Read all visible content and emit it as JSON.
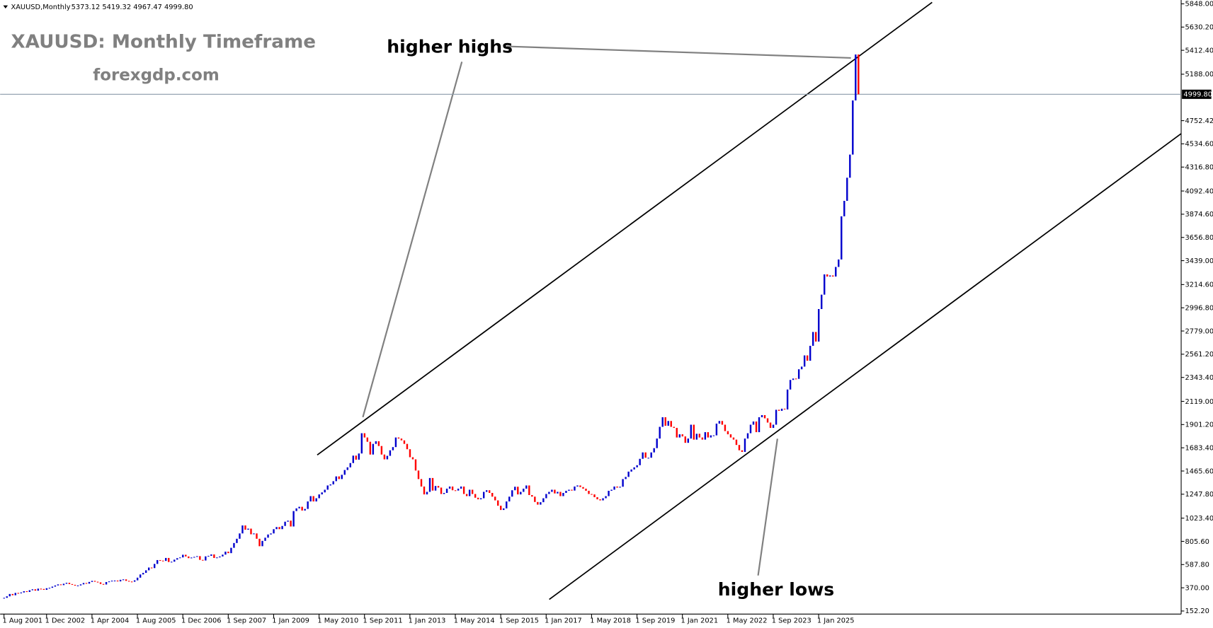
{
  "chart_data": {
    "type": "candlestick",
    "header": {
      "symbol": "XAUUSD,Monthly",
      "ohlc": "5373.12 5419.32 4967.47 4999.80"
    },
    "title": "XAUUSD: Monthly Timeframe",
    "subtitle": "forexgdp.com",
    "annotations": [
      "higher highs",
      "higher lows"
    ],
    "up_color": "#0000cd",
    "down_color": "#ff0000",
    "values": [
      276,
      290,
      312,
      300,
      322,
      318,
      326,
      338,
      331,
      347,
      356,
      343,
      362,
      359,
      351,
      366,
      370,
      381,
      392,
      402,
      395,
      408,
      417,
      405,
      398,
      390,
      392,
      402,
      415,
      409,
      425,
      435,
      427,
      421,
      406,
      401,
      424,
      430,
      437,
      438,
      430,
      445,
      449,
      435,
      429,
      427,
      440,
      465,
      495,
      510,
      534,
      560,
      555,
      594,
      630,
      625,
      622,
      650,
      612,
      615,
      634,
      648,
      655,
      680,
      664,
      648,
      654,
      660,
      667,
      632,
      626,
      665,
      670,
      683,
      650,
      655,
      664,
      681,
      709,
      695,
      745,
      790,
      830,
      880,
      955,
      915,
      925,
      872,
      880,
      830,
      760,
      810,
      840,
      870,
      880,
      920,
      940,
      920,
      950,
      990,
      1000,
      945,
      1090,
      1115,
      1130,
      1095,
      1110,
      1180,
      1230,
      1180,
      1210,
      1246,
      1265,
      1290,
      1330,
      1340,
      1370,
      1415,
      1390,
      1430,
      1475,
      1500,
      1540,
      1610,
      1572,
      1630,
      1820,
      1780,
      1740,
      1620,
      1720,
      1745,
      1700,
      1620,
      1575,
      1608,
      1660,
      1690,
      1780,
      1770,
      1753,
      1720,
      1670,
      1595,
      1575,
      1470,
      1390,
      1320,
      1246,
      1270,
      1400,
      1282,
      1325,
      1310,
      1250,
      1260,
      1300,
      1320,
      1285,
      1282,
      1300,
      1320,
      1250,
      1230,
      1290,
      1250,
      1215,
      1200,
      1210,
      1270,
      1285,
      1260,
      1225,
      1190,
      1140,
      1100,
      1115,
      1180,
      1225,
      1285,
      1318,
      1246,
      1270,
      1300,
      1330,
      1240,
      1225,
      1175,
      1150,
      1173,
      1210,
      1250,
      1270,
      1290,
      1255,
      1270,
      1230,
      1260,
      1280,
      1290,
      1282,
      1320,
      1330,
      1315,
      1300,
      1280,
      1250,
      1246,
      1220,
      1200,
      1190,
      1210,
      1230,
      1280,
      1290,
      1320,
      1310,
      1318,
      1390,
      1410,
      1460,
      1480,
      1500,
      1520,
      1580,
      1640,
      1590,
      1590,
      1640,
      1680,
      1770,
      1880,
      1970,
      1890,
      1935,
      1880,
      1870,
      1780,
      1810,
      1790,
      1730,
      1770,
      1900,
      1760,
      1815,
      1780,
      1760,
      1830,
      1780,
      1800,
      1800,
      1910,
      1935,
      1900,
      1840,
      1810,
      1780,
      1760,
      1710,
      1660,
      1645,
      1770,
      1820,
      1900,
      1930,
      1830,
      1970,
      1990,
      1960,
      1920,
      1870,
      1900,
      2040,
      2030,
      2050,
      2043,
      2230,
      2320,
      2333,
      2330,
      2420,
      2445,
      2550,
      2500,
      2640,
      2770,
      2680,
      2985,
      3120,
      3310,
      3290,
      3300,
      3290,
      3380,
      3450,
      3855,
      4000,
      4217,
      4434,
      4942,
      5373,
      4999.8
    ],
    "current_price": {
      "value": 4999.8,
      "label": "4999.80"
    },
    "ylim": [
      152.2,
      5848
    ],
    "yticks": [
      {
        "value": 5848,
        "label": "5848.00"
      },
      {
        "value": 5630.2,
        "label": "5630.20"
      },
      {
        "value": 5412.4,
        "label": "5412.40"
      },
      {
        "value": 5188,
        "label": "5188.00"
      },
      {
        "value": 4752.42,
        "label": "4752.42"
      },
      {
        "value": 4534.6,
        "label": "4534.60"
      },
      {
        "value": 4316.8,
        "label": "4316.80"
      },
      {
        "value": 4092.4,
        "label": "4092.40"
      },
      {
        "value": 3874.6,
        "label": "3874.60"
      },
      {
        "value": 3656.8,
        "label": "3656.80"
      },
      {
        "value": 3439,
        "label": "3439.00"
      },
      {
        "value": 3214.6,
        "label": "3214.60"
      },
      {
        "value": 2996.8,
        "label": "2996.80"
      },
      {
        "value": 2779,
        "label": "2779.00"
      },
      {
        "value": 2561.2,
        "label": "2561.20"
      },
      {
        "value": 2343.4,
        "label": "2343.40"
      },
      {
        "value": 2119,
        "label": "2119.00"
      },
      {
        "value": 1901.2,
        "label": "1901.20"
      },
      {
        "value": 1683.4,
        "label": "1683.40"
      },
      {
        "value": 1465.6,
        "label": "1465.60"
      },
      {
        "value": 1247.8,
        "label": "1247.80"
      },
      {
        "value": 1023.4,
        "label": "1023.40"
      },
      {
        "value": 805.6,
        "label": "805.60"
      },
      {
        "value": 587.8,
        "label": "587.80"
      },
      {
        "value": 370,
        "label": "370.00"
      },
      {
        "value": 152.2,
        "label": "152.20"
      }
    ],
    "xticks": [
      {
        "value": 0,
        "label": "1 Aug 2001"
      },
      {
        "value": 15,
        "label": "1 Dec 2002"
      },
      {
        "value": 31,
        "label": "1 Apr 2004"
      },
      {
        "value": 47,
        "label": "1 Aug 2005"
      },
      {
        "value": 63,
        "label": "1 Dec 2006"
      },
      {
        "value": 79,
        "label": "1 Sep 2007"
      },
      {
        "value": 95,
        "label": "1 Jan 2009"
      },
      {
        "value": 111,
        "label": "1 May 2010"
      },
      {
        "value": 127,
        "label": "1 Sep 2011"
      },
      {
        "value": 143,
        "label": "1 Jan 2013"
      },
      {
        "value": 159,
        "label": "1 May 2014"
      },
      {
        "value": 175,
        "label": "1 Sep 2015"
      },
      {
        "value": 191,
        "label": "1 Jan 2017"
      },
      {
        "value": 207,
        "label": "1 May 2018"
      },
      {
        "value": 223,
        "label": "1 Sep 2019"
      },
      {
        "value": 239,
        "label": "1 Jan 2021"
      },
      {
        "value": 255,
        "label": "1 May 2022"
      },
      {
        "value": 271,
        "label": "1 Sep 2023"
      },
      {
        "value": 287,
        "label": "1 Jan 2025"
      }
    ]
  }
}
